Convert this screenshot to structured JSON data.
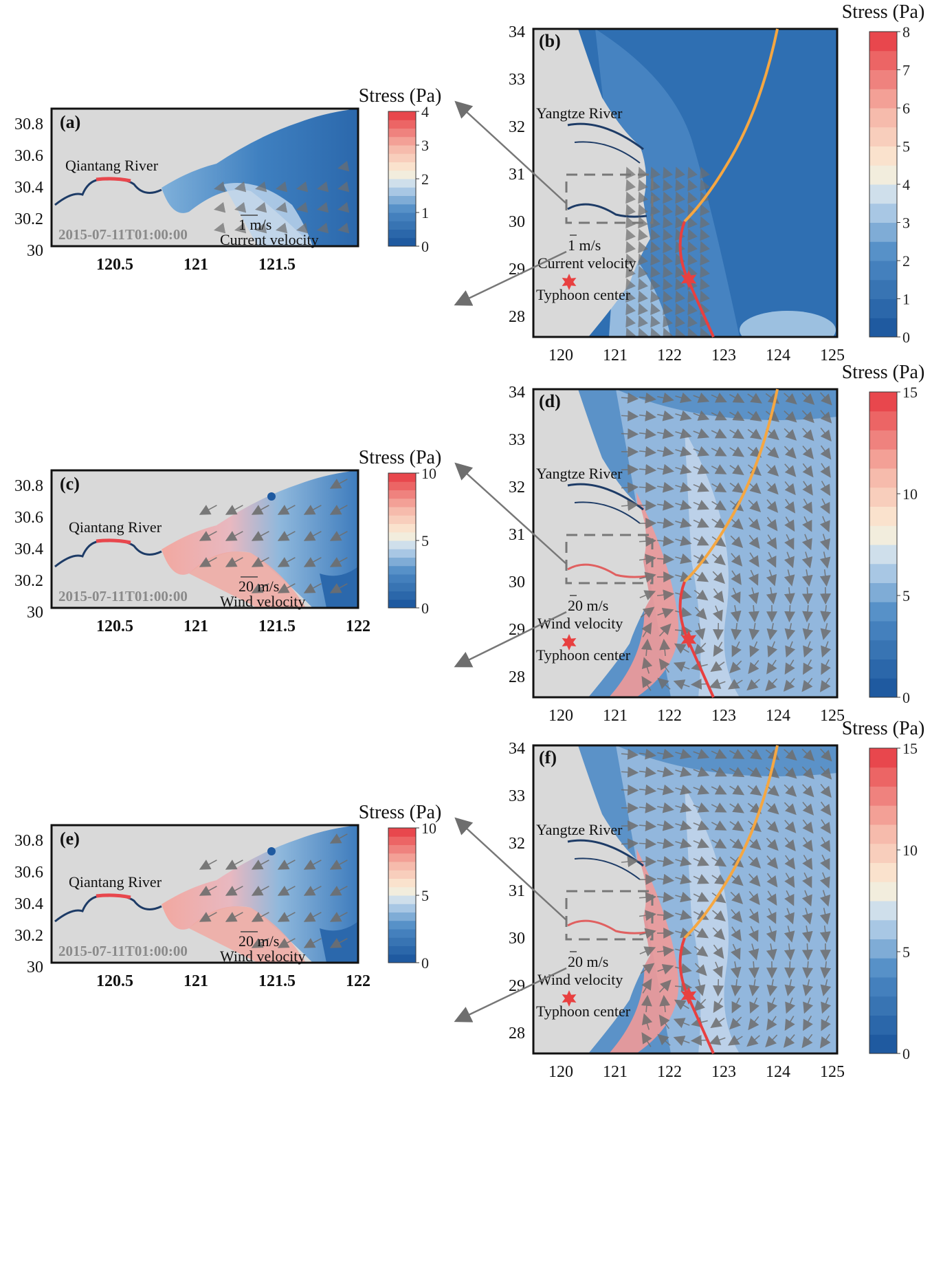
{
  "colors": {
    "high": "#e8474d",
    "mid": "#fbf0d9",
    "low": "#1f5aa0",
    "land": "#d9d9d9",
    "track_past": "#f5a742",
    "track_future": "#e84040",
    "arrow": "#6e6e6e"
  },
  "colorbar_title": "Stress (Pa)",
  "panels_big": [
    {
      "id": "b",
      "label": "(b)",
      "river": "Yangtze River",
      "scale": "1 m/s",
      "vector": "Current velocity",
      "center": "Typhoon center",
      "yticks": [
        "34",
        "33",
        "32",
        "31",
        "30",
        "29",
        "28"
      ],
      "xticks": [
        "120",
        "121",
        "122",
        "123",
        "124",
        "125"
      ],
      "cbar_ticks": [
        "8",
        "7",
        "6",
        "5",
        "4",
        "3",
        "2",
        "1",
        "0"
      ],
      "cbar_max": 8
    },
    {
      "id": "d",
      "label": "(d)",
      "river": "Yangtze River",
      "scale": "20 m/s",
      "vector": "Wind velocity",
      "center": "Typhoon center",
      "yticks": [
        "34",
        "33",
        "32",
        "31",
        "30",
        "29",
        "28"
      ],
      "xticks": [
        "120",
        "121",
        "122",
        "123",
        "124",
        "125"
      ],
      "cbar_ticks": [
        "15",
        "10",
        "5",
        "0"
      ],
      "cbar_max": 15
    },
    {
      "id": "f",
      "label": "(f)",
      "river": "Yangtze River",
      "scale": "20 m/s",
      "vector": "Wind velocity",
      "center": "Typhoon center",
      "yticks": [
        "34",
        "33",
        "32",
        "31",
        "30",
        "29",
        "28"
      ],
      "xticks": [
        "120",
        "121",
        "122",
        "123",
        "124",
        "125"
      ],
      "cbar_ticks": [
        "15",
        "10",
        "5",
        "0"
      ],
      "cbar_max": 15
    }
  ],
  "panels_small": [
    {
      "id": "a",
      "label": "(a)",
      "river": "Qiantang River",
      "timestamp": "2015-07-11T01:00:00",
      "scale": "1 m/s",
      "vector": "Current velocity",
      "yticks": [
        "30.8",
        "30.6",
        "30.4",
        "30.2",
        "30"
      ],
      "xticks": [
        "120.5",
        "121",
        "121.5"
      ],
      "cbar_ticks": [
        "4",
        "3",
        "2",
        "1",
        "0"
      ],
      "cbar_max": 4
    },
    {
      "id": "c",
      "label": "(c)",
      "river": "Qiantang River",
      "timestamp": "2015-07-11T01:00:00",
      "scale": "20 m/s",
      "vector": "Wind velocity",
      "yticks": [
        "30.8",
        "30.6",
        "30.4",
        "30.2",
        "30"
      ],
      "xticks": [
        "120.5",
        "121",
        "121.5",
        "122"
      ],
      "cbar_ticks": [
        "10",
        "5",
        "0"
      ],
      "cbar_max": 10
    },
    {
      "id": "e",
      "label": "(e)",
      "river": "Qiantang River",
      "timestamp": "2015-07-11T01:00:00",
      "scale": "20 m/s",
      "vector": "Wind velocity",
      "yticks": [
        "30.8",
        "30.6",
        "30.4",
        "30.2",
        "30"
      ],
      "xticks": [
        "120.5",
        "121",
        "121.5",
        "122"
      ],
      "cbar_ticks": [
        "10",
        "5",
        "0"
      ],
      "cbar_max": 10
    }
  ]
}
